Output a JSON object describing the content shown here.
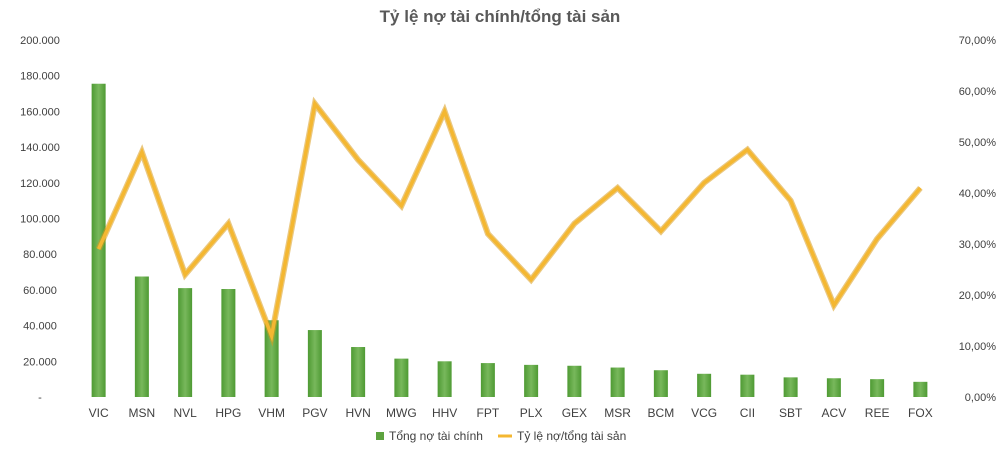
{
  "chart_data": {
    "type": "bar+line",
    "title": "Tỷ lệ nợ tài chính/tổng tài sản",
    "categories": [
      "VIC",
      "MSN",
      "NVL",
      "HPG",
      "VHM",
      "PGV",
      "HVN",
      "MWG",
      "HHV",
      "FPT",
      "PLX",
      "GEX",
      "MSR",
      "BCM",
      "VCG",
      "CII",
      "SBT",
      "ACV",
      "REE",
      "FOX"
    ],
    "series": [
      {
        "name": "Tổng nợ tài chính",
        "type": "bar",
        "axis": "left",
        "color": "#5DA33F",
        "values": [
          175500,
          67500,
          61000,
          60500,
          43000,
          37500,
          28000,
          21500,
          20000,
          19000,
          18000,
          17500,
          16500,
          15000,
          13000,
          12500,
          11000,
          10500,
          10000,
          8500
        ]
      },
      {
        "name": "Tỷ lệ nợ/tổng tài sản",
        "type": "line",
        "axis": "right",
        "color": "#F4B731",
        "values": [
          0.29,
          0.48,
          0.24,
          0.34,
          0.12,
          0.575,
          0.465,
          0.375,
          0.56,
          0.32,
          0.23,
          0.34,
          0.41,
          0.325,
          0.42,
          0.485,
          0.385,
          0.18,
          0.31,
          0.41
        ]
      }
    ],
    "y_left": {
      "min": 0,
      "max": 200000,
      "step": 20000,
      "tick_labels": [
        "-",
        "20.000",
        "40.000",
        "60.000",
        "80.000",
        "100.000",
        "120.000",
        "140.000",
        "160.000",
        "180.000",
        "200.000"
      ]
    },
    "y_right": {
      "min": 0,
      "max": 0.7,
      "step": 0.1,
      "tick_labels": [
        "0,00%",
        "10,00%",
        "20,00%",
        "30,00%",
        "40,00%",
        "50,00%",
        "60,00%",
        "70,00%"
      ]
    },
    "grid": false,
    "legend_position": "bottom"
  }
}
